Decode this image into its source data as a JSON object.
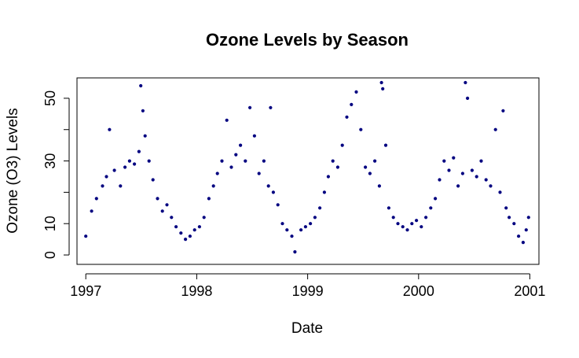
{
  "chart_data": {
    "type": "scatter",
    "title": "Ozone Levels by Season",
    "xlabel": "Date",
    "ylabel": "Ozone (O3) Levels",
    "x_axis_type": "date",
    "xlim": [
      "1996-12-03",
      "2001-01-31"
    ],
    "ylim": [
      -3,
      56.5
    ],
    "x_ticks": [
      {
        "date": "1997-01-01",
        "label": "1997"
      },
      {
        "date": "1998-01-01",
        "label": "1998"
      },
      {
        "date": "1999-01-01",
        "label": "1999"
      },
      {
        "date": "2000-01-01",
        "label": "2000"
      },
      {
        "date": "2001-01-01",
        "label": "2001"
      }
    ],
    "y_ticks": [
      0,
      10,
      20,
      30,
      40,
      50
    ],
    "y_tick_labels": [
      "0",
      "10",
      "30",
      "50"
    ],
    "grid": false,
    "legend": "none",
    "point_color": "#000080",
    "point_marker": "filled-circle",
    "series": [
      {
        "points": [
          [
            "1997-01-01",
            6
          ],
          [
            "1997-01-20",
            14
          ],
          [
            "1997-02-05",
            18
          ],
          [
            "1997-02-25",
            22
          ],
          [
            "1997-03-10",
            25
          ],
          [
            "1997-03-20",
            40
          ],
          [
            "1997-04-05",
            27
          ],
          [
            "1997-04-25",
            22
          ],
          [
            "1997-05-10",
            28
          ],
          [
            "1997-05-25",
            30
          ],
          [
            "1997-06-10",
            29
          ],
          [
            "1997-06-25",
            33
          ],
          [
            "1997-07-01",
            54
          ],
          [
            "1997-07-08",
            46
          ],
          [
            "1997-07-15",
            38
          ],
          [
            "1997-07-28",
            30
          ],
          [
            "1997-08-10",
            24
          ],
          [
            "1997-08-25",
            18
          ],
          [
            "1997-09-10",
            14
          ],
          [
            "1997-09-25",
            16
          ],
          [
            "1997-10-10",
            12
          ],
          [
            "1997-10-25",
            9
          ],
          [
            "1997-11-10",
            7
          ],
          [
            "1997-11-25",
            5
          ],
          [
            "1997-12-10",
            6
          ],
          [
            "1997-12-25",
            8
          ],
          [
            "1998-01-10",
            9
          ],
          [
            "1998-01-25",
            12
          ],
          [
            "1998-02-10",
            18
          ],
          [
            "1998-02-25",
            22
          ],
          [
            "1998-03-10",
            26
          ],
          [
            "1998-03-25",
            30
          ],
          [
            "1998-04-10",
            43
          ],
          [
            "1998-04-25",
            28
          ],
          [
            "1998-05-10",
            32
          ],
          [
            "1998-05-25",
            35
          ],
          [
            "1998-06-10",
            30
          ],
          [
            "1998-06-25",
            47
          ],
          [
            "1998-07-10",
            38
          ],
          [
            "1998-07-25",
            26
          ],
          [
            "1998-08-10",
            30
          ],
          [
            "1998-08-25",
            22
          ],
          [
            "1998-09-01",
            47
          ],
          [
            "1998-09-10",
            20
          ],
          [
            "1998-09-25",
            16
          ],
          [
            "1998-10-10",
            10
          ],
          [
            "1998-10-25",
            8
          ],
          [
            "1998-11-10",
            6
          ],
          [
            "1998-11-20",
            1
          ],
          [
            "1998-12-10",
            8
          ],
          [
            "1998-12-25",
            9
          ],
          [
            "1999-01-10",
            10
          ],
          [
            "1999-01-25",
            12
          ],
          [
            "1999-02-10",
            15
          ],
          [
            "1999-02-25",
            20
          ],
          [
            "1999-03-10",
            25
          ],
          [
            "1999-03-25",
            30
          ],
          [
            "1999-04-10",
            28
          ],
          [
            "1999-04-25",
            35
          ],
          [
            "1999-05-10",
            44
          ],
          [
            "1999-05-25",
            48
          ],
          [
            "1999-06-10",
            52
          ],
          [
            "1999-06-25",
            40
          ],
          [
            "1999-07-10",
            28
          ],
          [
            "1999-07-25",
            26
          ],
          [
            "1999-08-10",
            30
          ],
          [
            "1999-08-25",
            22
          ],
          [
            "1999-09-01",
            55
          ],
          [
            "1999-09-05",
            53
          ],
          [
            "1999-09-15",
            35
          ],
          [
            "1999-09-25",
            15
          ],
          [
            "1999-10-10",
            12
          ],
          [
            "1999-10-25",
            10
          ],
          [
            "1999-11-10",
            9
          ],
          [
            "1999-11-25",
            8
          ],
          [
            "1999-12-10",
            10
          ],
          [
            "1999-12-25",
            11
          ],
          [
            "2000-01-10",
            9
          ],
          [
            "2000-01-25",
            12
          ],
          [
            "2000-02-10",
            15
          ],
          [
            "2000-02-25",
            18
          ],
          [
            "2000-03-10",
            24
          ],
          [
            "2000-03-25",
            30
          ],
          [
            "2000-04-10",
            27
          ],
          [
            "2000-04-25",
            31
          ],
          [
            "2000-05-10",
            22
          ],
          [
            "2000-05-25",
            26
          ],
          [
            "2000-06-03",
            55
          ],
          [
            "2000-06-10",
            50
          ],
          [
            "2000-06-25",
            27
          ],
          [
            "2000-07-10",
            25
          ],
          [
            "2000-07-25",
            30
          ],
          [
            "2000-08-10",
            24
          ],
          [
            "2000-08-25",
            22
          ],
          [
            "2000-09-10",
            40
          ],
          [
            "2000-09-25",
            20
          ],
          [
            "2000-10-05",
            46
          ],
          [
            "2000-10-15",
            15
          ],
          [
            "2000-10-25",
            12
          ],
          [
            "2000-11-10",
            10
          ],
          [
            "2000-11-25",
            6
          ],
          [
            "2000-12-10",
            4
          ],
          [
            "2000-12-20",
            8
          ],
          [
            "2000-12-28",
            12
          ]
        ]
      }
    ]
  }
}
